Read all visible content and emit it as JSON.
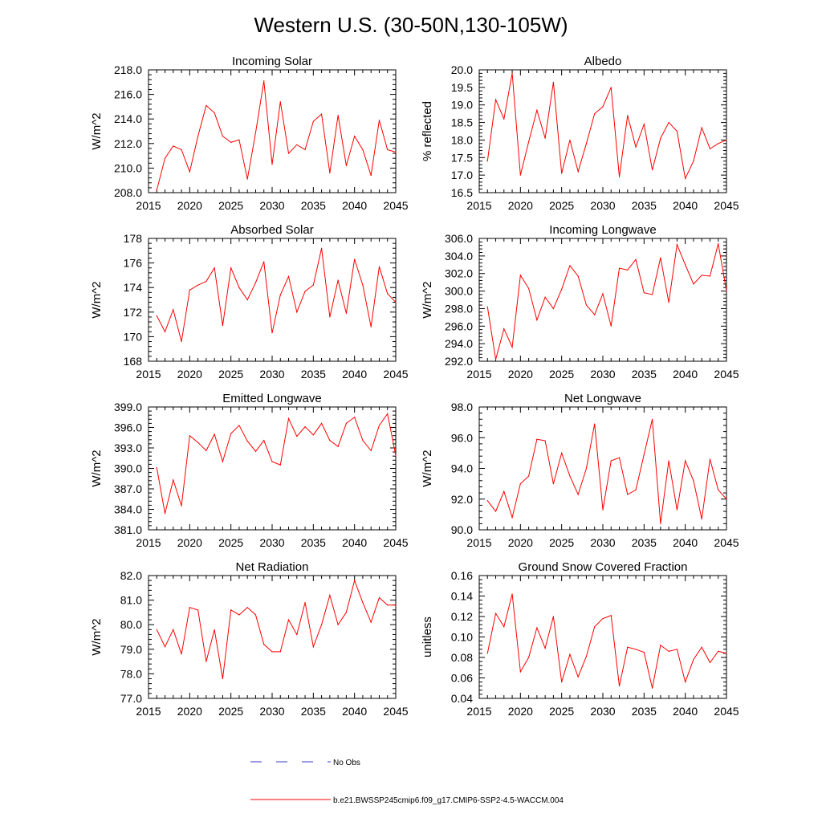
{
  "figure_title": "Western U.S. (30-50N,130-105W)",
  "legend": {
    "entries": [
      {
        "label": "No Obs",
        "color": "#3a3ac8",
        "style": "dashed"
      },
      {
        "label": "b.e21.BWSSP245cmip6.f09_g17.CMIP6-SSP2-4.5-WACCM.004",
        "color": "#ff0000",
        "style": "solid"
      }
    ]
  },
  "chart_data": [
    {
      "type": "line",
      "title": "Incoming Solar",
      "ylabel": "W/m^2",
      "xlim": [
        2015,
        2045
      ],
      "ylim": [
        208.0,
        218.0
      ],
      "xticks": [
        2015,
        2020,
        2025,
        2030,
        2035,
        2040,
        2045
      ],
      "yticks": [
        208.0,
        210.0,
        212.0,
        214.0,
        216.0,
        218.0
      ],
      "ytick_labels": [
        "208.0",
        "210.0",
        "212.0",
        "214.0",
        "216.0",
        "218.0"
      ],
      "x": [
        2016,
        2017,
        2018,
        2019,
        2020,
        2021,
        2022,
        2023,
        2024,
        2025,
        2026,
        2027,
        2028,
        2029,
        2030,
        2031,
        2032,
        2033,
        2034,
        2035,
        2036,
        2037,
        2038,
        2039,
        2040,
        2041,
        2042,
        2043,
        2044,
        2045
      ],
      "series": [
        {
          "name": "b.e21.BWSSP245cmip6.f09_g17.CMIP6-SSP2-4.5-WACCM.004",
          "color": "#ff0000",
          "values": [
            208.2,
            210.8,
            211.8,
            211.5,
            209.7,
            212.6,
            215.1,
            214.5,
            212.6,
            212.1,
            212.3,
            209.1,
            212.9,
            217.1,
            210.3,
            215.4,
            211.2,
            211.9,
            211.5,
            213.8,
            214.4,
            209.6,
            214.3,
            210.2,
            212.6,
            211.5,
            209.4,
            213.9,
            211.5,
            211.3
          ]
        }
      ]
    },
    {
      "type": "line",
      "title": "Albedo",
      "ylabel": "% reflected",
      "xlim": [
        2015,
        2045
      ],
      "ylim": [
        16.5,
        20.0
      ],
      "xticks": [
        2015,
        2020,
        2025,
        2030,
        2035,
        2040,
        2045
      ],
      "yticks": [
        16.5,
        17.0,
        17.5,
        18.0,
        18.5,
        19.0,
        19.5,
        20.0
      ],
      "ytick_labels": [
        "16.5",
        "17.0",
        "17.5",
        "18.0",
        "18.5",
        "19.0",
        "19.5",
        "20.0"
      ],
      "x": [
        2016,
        2017,
        2018,
        2019,
        2020,
        2021,
        2022,
        2023,
        2024,
        2025,
        2026,
        2027,
        2028,
        2029,
        2030,
        2031,
        2032,
        2033,
        2034,
        2035,
        2036,
        2037,
        2038,
        2039,
        2040,
        2041,
        2042,
        2043,
        2044,
        2045
      ],
      "series": [
        {
          "name": "b.e21.BWSSP245cmip6.f09_g17.CMIP6-SSP2-4.5-WACCM.004",
          "color": "#ff0000",
          "values": [
            17.4,
            19.15,
            18.6,
            19.9,
            17.0,
            17.95,
            18.85,
            18.05,
            19.65,
            17.05,
            18.0,
            17.1,
            17.9,
            18.75,
            18.95,
            19.5,
            16.95,
            18.7,
            17.8,
            18.45,
            17.15,
            18.05,
            18.5,
            18.25,
            16.9,
            17.4,
            18.35,
            17.75,
            17.9,
            18.0
          ]
        }
      ]
    },
    {
      "type": "line",
      "title": "Absorbed Solar",
      "ylabel": "W/m^2",
      "xlim": [
        2015,
        2045
      ],
      "ylim": [
        168,
        178
      ],
      "xticks": [
        2015,
        2020,
        2025,
        2030,
        2035,
        2040,
        2045
      ],
      "yticks": [
        168,
        170,
        172,
        174,
        176,
        178
      ],
      "ytick_labels": [
        "168",
        "170",
        "172",
        "174",
        "176",
        "178"
      ],
      "x": [
        2016,
        2017,
        2018,
        2019,
        2020,
        2021,
        2022,
        2023,
        2024,
        2025,
        2026,
        2027,
        2028,
        2029,
        2030,
        2031,
        2032,
        2033,
        2034,
        2035,
        2036,
        2037,
        2038,
        2039,
        2040,
        2041,
        2042,
        2043,
        2044,
        2045
      ],
      "series": [
        {
          "name": "b.e21.BWSSP245cmip6.f09_g17.CMIP6-SSP2-4.5-WACCM.004",
          "color": "#ff0000",
          "values": [
            171.7,
            170.4,
            172.2,
            169.6,
            173.8,
            174.2,
            174.5,
            175.6,
            170.9,
            175.6,
            174.0,
            173.0,
            174.4,
            176.1,
            170.3,
            173.4,
            174.9,
            172.0,
            173.7,
            174.2,
            177.2,
            171.6,
            174.6,
            171.9,
            176.3,
            174.2,
            170.8,
            175.7,
            173.5,
            172.8
          ]
        }
      ]
    },
    {
      "type": "line",
      "title": "Incoming Longwave",
      "ylabel": "W/m^2",
      "xlim": [
        2015,
        2045
      ],
      "ylim": [
        292.0,
        306.0
      ],
      "xticks": [
        2015,
        2020,
        2025,
        2030,
        2035,
        2040,
        2045
      ],
      "yticks": [
        292.0,
        294.0,
        296.0,
        298.0,
        300.0,
        302.0,
        304.0,
        306.0
      ],
      "ytick_labels": [
        "292.0",
        "294.0",
        "296.0",
        "298.0",
        "300.0",
        "302.0",
        "304.0",
        "306.0"
      ],
      "x": [
        2016,
        2017,
        2018,
        2019,
        2020,
        2021,
        2022,
        2023,
        2024,
        2025,
        2026,
        2027,
        2028,
        2029,
        2030,
        2031,
        2032,
        2033,
        2034,
        2035,
        2036,
        2037,
        2038,
        2039,
        2040,
        2041,
        2042,
        2043,
        2044,
        2045
      ],
      "series": [
        {
          "name": "b.e21.BWSSP245cmip6.f09_g17.CMIP6-SSP2-4.5-WACCM.004",
          "color": "#ff0000",
          "values": [
            298.2,
            292.2,
            295.7,
            293.6,
            301.8,
            300.3,
            296.7,
            299.3,
            298.0,
            300.2,
            302.9,
            301.7,
            298.4,
            297.3,
            299.7,
            296.0,
            302.6,
            302.4,
            303.6,
            299.8,
            299.6,
            303.8,
            298.7,
            305.3,
            303.0,
            300.8,
            301.8,
            301.7,
            305.4,
            300.0
          ]
        }
      ]
    },
    {
      "type": "line",
      "title": "Emitted Longwave",
      "ylabel": "W/m^2",
      "xlim": [
        2015,
        2045
      ],
      "ylim": [
        381.0,
        399.0
      ],
      "xticks": [
        2015,
        2020,
        2025,
        2030,
        2035,
        2040,
        2045
      ],
      "yticks": [
        381.0,
        384.0,
        387.0,
        390.0,
        393.0,
        396.0,
        399.0
      ],
      "ytick_labels": [
        "381.0",
        "384.0",
        "387.0",
        "390.0",
        "393.0",
        "396.0",
        "399.0"
      ],
      "x": [
        2016,
        2017,
        2018,
        2019,
        2020,
        2021,
        2022,
        2023,
        2024,
        2025,
        2026,
        2027,
        2028,
        2029,
        2030,
        2031,
        2032,
        2033,
        2034,
        2035,
        2036,
        2037,
        2038,
        2039,
        2040,
        2041,
        2042,
        2043,
        2044,
        2045
      ],
      "series": [
        {
          "name": "b.e21.BWSSP245cmip6.f09_g17.CMIP6-SSP2-4.5-WACCM.004",
          "color": "#ff0000",
          "values": [
            390.1,
            383.4,
            388.3,
            384.5,
            394.8,
            393.8,
            392.6,
            395.0,
            391.0,
            395.1,
            396.3,
            394.0,
            392.5,
            394.1,
            391.0,
            390.5,
            397.3,
            394.7,
            396.1,
            394.9,
            396.6,
            394.1,
            393.2,
            396.6,
            397.5,
            394.1,
            392.6,
            396.3,
            398.0,
            391.9
          ]
        }
      ]
    },
    {
      "type": "line",
      "title": "Net Longwave",
      "ylabel": "W/m^2",
      "xlim": [
        2015,
        2045
      ],
      "ylim": [
        90.0,
        98.0
      ],
      "xticks": [
        2015,
        2020,
        2025,
        2030,
        2035,
        2040,
        2045
      ],
      "yticks": [
        90.0,
        92.0,
        94.0,
        96.0,
        98.0
      ],
      "ytick_labels": [
        "90.0",
        "92.0",
        "94.0",
        "96.0",
        "98.0"
      ],
      "x": [
        2016,
        2017,
        2018,
        2019,
        2020,
        2021,
        2022,
        2023,
        2024,
        2025,
        2026,
        2027,
        2028,
        2029,
        2030,
        2031,
        2032,
        2033,
        2034,
        2035,
        2036,
        2037,
        2038,
        2039,
        2040,
        2041,
        2042,
        2043,
        2044,
        2045
      ],
      "series": [
        {
          "name": "b.e21.BWSSP245cmip6.f09_g17.CMIP6-SSP2-4.5-WACCM.004",
          "color": "#ff0000",
          "values": [
            91.9,
            91.2,
            92.5,
            90.8,
            93.0,
            93.5,
            95.9,
            95.8,
            93.0,
            95.0,
            93.5,
            92.3,
            94.0,
            96.9,
            91.3,
            94.5,
            94.7,
            92.3,
            92.6,
            94.9,
            97.2,
            90.4,
            94.5,
            91.3,
            94.5,
            93.2,
            90.7,
            94.6,
            92.6,
            92.0
          ]
        }
      ]
    },
    {
      "type": "line",
      "title": "Net Radiation",
      "ylabel": "W/m^2",
      "xlim": [
        2015,
        2045
      ],
      "ylim": [
        77.0,
        82.0
      ],
      "xticks": [
        2015,
        2020,
        2025,
        2030,
        2035,
        2040,
        2045
      ],
      "yticks": [
        77.0,
        78.0,
        79.0,
        80.0,
        81.0,
        82.0
      ],
      "ytick_labels": [
        "77.0",
        "78.0",
        "79.0",
        "80.0",
        "81.0",
        "82.0"
      ],
      "x": [
        2016,
        2017,
        2018,
        2019,
        2020,
        2021,
        2022,
        2023,
        2024,
        2025,
        2026,
        2027,
        2028,
        2029,
        2030,
        2031,
        2032,
        2033,
        2034,
        2035,
        2036,
        2037,
        2038,
        2039,
        2040,
        2041,
        2042,
        2043,
        2044,
        2045
      ],
      "series": [
        {
          "name": "b.e21.BWSSP245cmip6.f09_g17.CMIP6-SSP2-4.5-WACCM.004",
          "color": "#ff0000",
          "values": [
            79.8,
            79.1,
            79.8,
            78.8,
            80.7,
            80.6,
            78.5,
            79.8,
            77.8,
            80.6,
            80.4,
            80.7,
            80.4,
            79.2,
            78.9,
            78.9,
            80.2,
            79.6,
            80.9,
            79.1,
            80.0,
            81.2,
            80.0,
            80.5,
            81.8,
            80.9,
            80.1,
            81.1,
            80.8,
            80.8
          ]
        }
      ]
    },
    {
      "type": "line",
      "title": "Ground Snow Covered Fraction",
      "ylabel": "unitless",
      "xlim": [
        2015,
        2045
      ],
      "ylim": [
        0.04,
        0.16
      ],
      "xticks": [
        2015,
        2020,
        2025,
        2030,
        2035,
        2040,
        2045
      ],
      "yticks": [
        0.04,
        0.06,
        0.08,
        0.1,
        0.12,
        0.14,
        0.16
      ],
      "ytick_labels": [
        "0.04",
        "0.06",
        "0.08",
        "0.10",
        "0.12",
        "0.14",
        "0.16"
      ],
      "x": [
        2016,
        2017,
        2018,
        2019,
        2020,
        2021,
        2022,
        2023,
        2024,
        2025,
        2026,
        2027,
        2028,
        2029,
        2030,
        2031,
        2032,
        2033,
        2034,
        2035,
        2036,
        2037,
        2038,
        2039,
        2040,
        2041,
        2042,
        2043,
        2044,
        2045
      ],
      "series": [
        {
          "name": "b.e21.BWSSP245cmip6.f09_g17.CMIP6-SSP2-4.5-WACCM.004",
          "color": "#ff0000",
          "values": [
            0.084,
            0.123,
            0.11,
            0.142,
            0.066,
            0.08,
            0.109,
            0.089,
            0.12,
            0.056,
            0.083,
            0.061,
            0.081,
            0.11,
            0.118,
            0.121,
            0.052,
            0.09,
            0.088,
            0.085,
            0.05,
            0.092,
            0.086,
            0.088,
            0.056,
            0.078,
            0.09,
            0.075,
            0.086,
            0.084
          ]
        }
      ]
    }
  ]
}
